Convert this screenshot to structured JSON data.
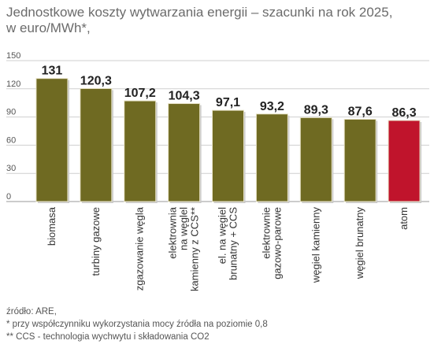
{
  "title_lines": [
    "Jednostkowe koszty wytwarzania energii – szacunki na rok 2025,",
    "w euro/MWh*,"
  ],
  "chart_data": {
    "type": "bar",
    "categories": [
      "biomasa",
      "turbiny gazowe",
      "zgazowanie węgla",
      "elektrownia na węglel kamienny z CCS**",
      "el. na węgiel brunatny + CCS",
      "elektrownie gazowo-parowe",
      "węgiel kamienny",
      "węgiel brunatny",
      "atom"
    ],
    "category_lines": [
      [
        "biomasa"
      ],
      [
        "turbiny gazowe"
      ],
      [
        "zgazowanie węgla"
      ],
      [
        "elektrownia",
        "na węglel",
        "kamienny z CCS**"
      ],
      [
        "el. na węgiel",
        "brunatny + CCS"
      ],
      [
        "elektrownie",
        "gazowo-parowe"
      ],
      [
        "węgiel kamienny"
      ],
      [
        "węgiel brunatny"
      ],
      [
        "atom"
      ]
    ],
    "values": [
      131,
      120.3,
      107.2,
      104.3,
      97.1,
      93.2,
      89.3,
      87.6,
      86.3
    ],
    "value_labels": [
      "131",
      "120,3",
      "107,2",
      "104,3",
      "97,1",
      "93,2",
      "89,3",
      "87,6",
      "86,3"
    ],
    "yticks": [
      0,
      30,
      60,
      90,
      120,
      150
    ],
    "ylim": [
      0,
      150
    ],
    "grid": true,
    "bar_color": "#6f6a22",
    "highlight_color": "#c0142c",
    "highlight_index": 8
  },
  "footnotes": [
    "źródło: ARE,",
    "* przy współczynniku wykorzystania mocy źródła na poziomie 0,8",
    "** CCS - technologia wychwytu i składowania CO2"
  ]
}
